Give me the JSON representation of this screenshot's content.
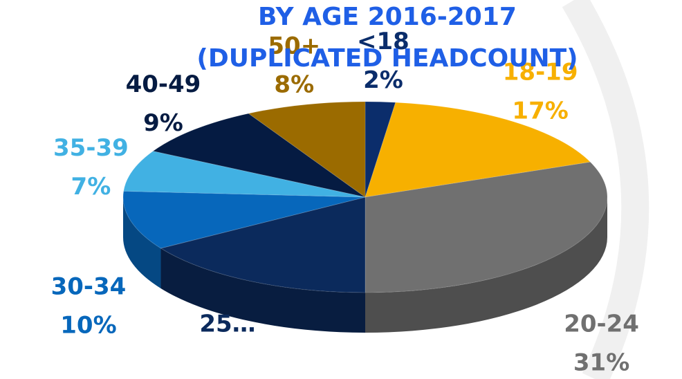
{
  "chart_data": {
    "type": "pie",
    "title": "BY AGE 2016-2017",
    "subtitle": "(DUPLICATED HEADCOUNT)",
    "categories": [
      "<18",
      "18-19",
      "20-24",
      "25…",
      "30-34",
      "35-39",
      "40-49",
      "50+"
    ],
    "values": [
      2,
      17,
      31,
      16,
      10,
      7,
      9,
      8
    ],
    "value_labels": [
      "2%",
      "17%",
      "31%",
      null,
      "10%",
      "7%",
      "9%",
      "8%"
    ],
    "colors": [
      "#0b2d6b",
      "#f7b000",
      "#707070",
      "#0b2a5c",
      "#0767bb",
      "#41b1e3",
      "#051b42",
      "#9b6b00"
    ],
    "start_angle": 0,
    "direction": "clockwise",
    "3d": true
  }
}
